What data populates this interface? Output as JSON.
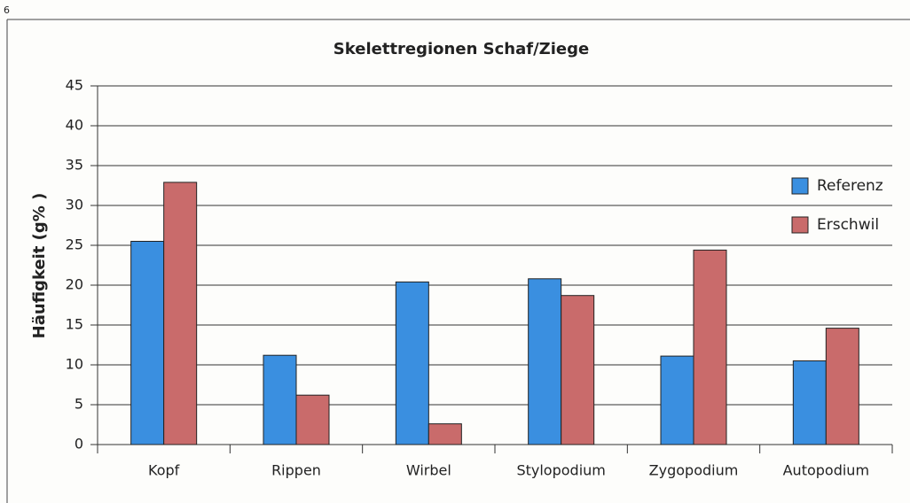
{
  "page_number": "6",
  "chart_data": {
    "type": "bar",
    "title": "Skelettregionen Schaf/Ziege",
    "ylabel": "Häufigkeit (g% )",
    "categories": [
      "Kopf",
      "Rippen",
      "Wirbel",
      "Stylopodium",
      "Zygopodium",
      "Autopodium"
    ],
    "series": [
      {
        "name": "Referenz",
        "color": "#3a8fe0",
        "values": [
          25.5,
          11.2,
          20.4,
          20.8,
          11.1,
          10.5
        ]
      },
      {
        "name": "Erschwil",
        "color": "#c96b6b",
        "values": [
          32.9,
          6.2,
          2.6,
          18.7,
          24.4,
          14.6
        ]
      }
    ],
    "ylim": [
      0,
      45
    ],
    "yticks": [
      0,
      5,
      10,
      15,
      20,
      25,
      30,
      35,
      40,
      45
    ],
    "grid": true,
    "legend": "right"
  }
}
